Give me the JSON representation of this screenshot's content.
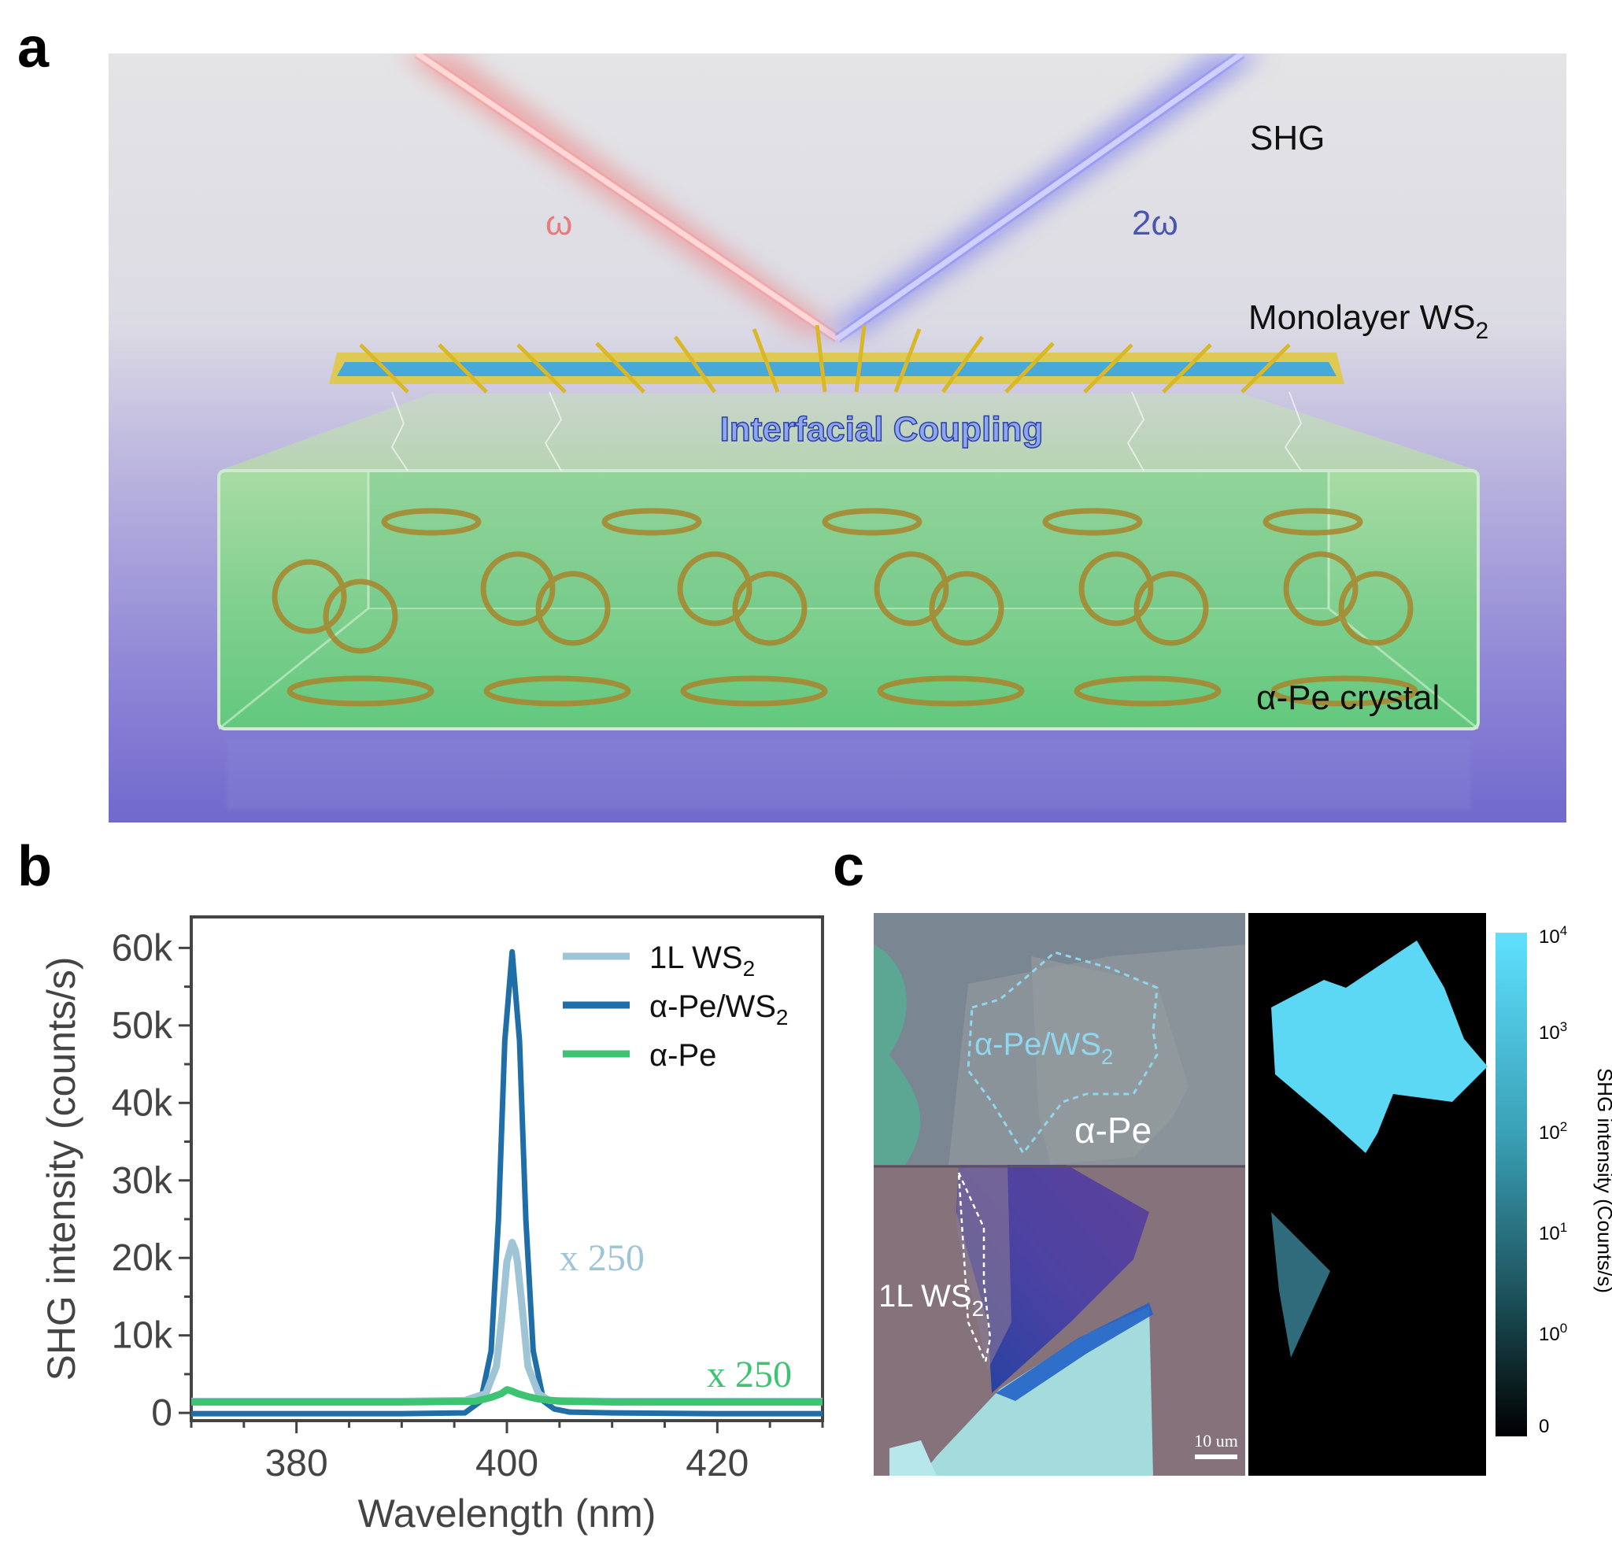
{
  "panels": {
    "a": {
      "letter": "a",
      "labels": {
        "shg": "SHG",
        "omega": "ω",
        "two_omega": "2ω",
        "monolayer": "Monolayer WS",
        "monolayer_sub": "2",
        "coupling": "Interfacial Coupling",
        "crystal": "α-Pe crystal"
      }
    },
    "b": {
      "letter": "b"
    },
    "c": {
      "letter": "c",
      "labels": {
        "hetero": "α-Pe/WS",
        "hetero_sub": "2",
        "ape": "α-Pe",
        "ws2": "1L WS",
        "ws2_sub": "2",
        "scalebar": "10 um"
      },
      "colorbar": {
        "label": "SHG intensity (Counts/s)",
        "ticks": [
          {
            "base": "10",
            "exp": "4"
          },
          {
            "base": "10",
            "exp": "3"
          },
          {
            "base": "10",
            "exp": "2"
          },
          {
            "base": "10",
            "exp": "1"
          },
          {
            "base": "10",
            "exp": "0"
          },
          {
            "base": "0",
            "exp": ""
          }
        ]
      }
    }
  },
  "chart_data": {
    "type": "line",
    "xlabel": "Wavelength (nm)",
    "ylabel": "SHG intensity (counts/s)",
    "xlim": [
      370,
      430
    ],
    "ylim": [
      -1000,
      64000
    ],
    "xticks": [
      380,
      400,
      420
    ],
    "yticks": [
      0,
      10000,
      20000,
      30000,
      40000,
      50000,
      60000
    ],
    "ytick_labels": [
      "0",
      "10k",
      "20k",
      "30k",
      "40k",
      "50k",
      "60k"
    ],
    "legend_position": "top-right",
    "series": [
      {
        "name": "1L WS",
        "name_sub": "2",
        "color": "#9ec4d6",
        "x": [
          370,
          380,
          390,
          396,
          398,
          399,
          399.5,
          400,
          400.5,
          400.8,
          401,
          401.5,
          402,
          403,
          404,
          410,
          420,
          430
        ],
        "y": [
          1500,
          1500,
          1500,
          1600,
          2500,
          6000,
          12000,
          19500,
          22000,
          21000,
          19500,
          13000,
          6000,
          2500,
          1600,
          1500,
          1500,
          1500
        ]
      },
      {
        "name": "α-Pe/WS",
        "name_sub": "2",
        "color": "#1f6ea8",
        "x": [
          370,
          380,
          390,
          396,
          397.5,
          398.5,
          399.2,
          399.8,
          400.5,
          401.2,
          401.8,
          402.5,
          403.5,
          404.5,
          406,
          410,
          420,
          430
        ],
        "y": [
          -100,
          -100,
          -100,
          0,
          1500,
          8000,
          25000,
          48000,
          59500,
          48000,
          25000,
          8000,
          1500,
          500,
          100,
          0,
          -100,
          -100
        ]
      },
      {
        "name": "α-Pe",
        "color": "#3ec373",
        "x": [
          370,
          380,
          390,
          397,
          398.5,
          399.5,
          400,
          400.5,
          401,
          402,
          403,
          405,
          410,
          420,
          430
        ],
        "y": [
          1400,
          1400,
          1400,
          1500,
          2000,
          2500,
          3000,
          2800,
          2500,
          2100,
          1800,
          1500,
          1400,
          1400,
          1400
        ]
      }
    ],
    "annotations": [
      {
        "text": "x  250",
        "x": 405,
        "y": 20000,
        "color": "#9ec4d6"
      },
      {
        "text": "x  250",
        "x": 419,
        "y": 5000,
        "color": "#3ec373"
      }
    ]
  }
}
